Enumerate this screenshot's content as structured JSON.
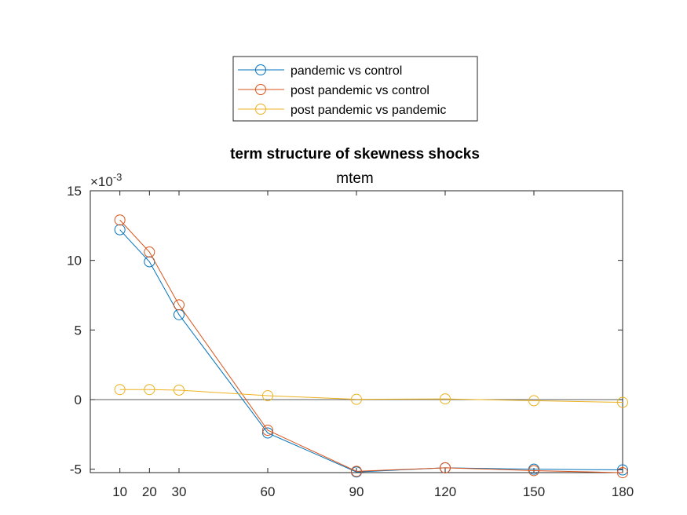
{
  "chart_data": {
    "type": "line",
    "title": "term structure of skewness shocks",
    "subtitle": "mtem",
    "xlabel": "",
    "ylabel": "",
    "y_exponent_label": "×10",
    "y_exponent_power": "-3",
    "x": [
      10,
      20,
      30,
      60,
      90,
      120,
      150,
      180
    ],
    "x_tick_labels": [
      "10",
      "20",
      "30",
      "60",
      "90",
      "120",
      "150",
      "180"
    ],
    "xlim": [
      0,
      180
    ],
    "ylim": [
      -5.2,
      15
    ],
    "y_ticks": [
      -5,
      0,
      5,
      10,
      15
    ],
    "y_tick_labels": [
      "-5",
      "0",
      "5",
      "10",
      "15"
    ],
    "zero_line": true,
    "grid": false,
    "legend_position": "top-center",
    "marker": "open-circle",
    "series": [
      {
        "name": "pandemic vs control",
        "color": "#0072BD",
        "values": [
          12.2,
          9.9,
          6.1,
          -2.4,
          -5.2,
          -4.9,
          -5.0,
          -5.05
        ]
      },
      {
        "name": "post pandemic vs control",
        "color": "#D95319",
        "values": [
          12.9,
          10.6,
          6.8,
          -2.2,
          -5.15,
          -4.9,
          -5.1,
          -5.25
        ]
      },
      {
        "name": "post pandemic vs pandemic",
        "color": "#EDB120",
        "values": [
          0.72,
          0.72,
          0.68,
          0.28,
          0.02,
          0.05,
          -0.08,
          -0.2
        ]
      }
    ]
  }
}
